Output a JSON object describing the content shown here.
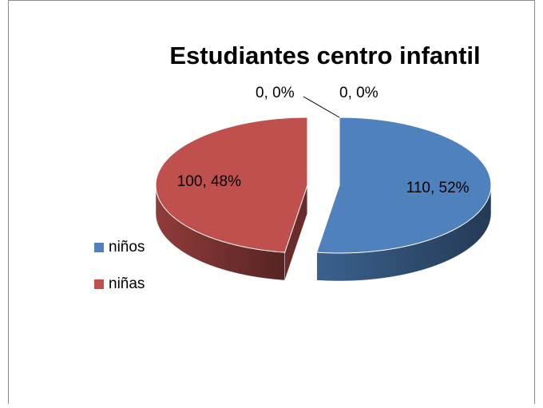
{
  "chart_data": {
    "type": "pie",
    "title": "Estudiantes centro infantil",
    "categories": [
      "niños",
      "niñas",
      null,
      null
    ],
    "values": [
      110,
      100,
      0,
      0
    ],
    "value_labels": [
      "110, 52%",
      "100, 48%",
      "0, 0%",
      "0, 0%"
    ],
    "colors": [
      "#4f81bd",
      "#c0504d",
      "#9bbb59",
      "#8064a2"
    ],
    "legend": "left",
    "exploded": true,
    "three_d": true
  }
}
